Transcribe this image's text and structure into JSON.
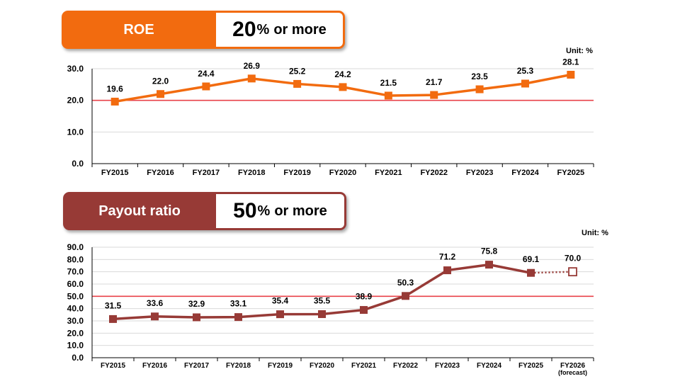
{
  "roe": {
    "label": "ROE",
    "target_value": "20",
    "target_unit": "%",
    "target_rest": "or more",
    "unit_label": "Unit: %",
    "color": "#f26b0f",
    "chart_data": {
      "type": "line",
      "categories": [
        "FY2015",
        "FY2016",
        "FY2017",
        "FY2018",
        "FY2019",
        "FY2020",
        "FY2021",
        "FY2022",
        "FY2023",
        "FY2024",
        "FY2025"
      ],
      "values": [
        19.6,
        22.0,
        24.4,
        26.9,
        25.2,
        24.2,
        21.5,
        21.7,
        23.5,
        25.3,
        28.1
      ],
      "value_labels": [
        "19.6",
        "22.0",
        "24.4",
        "26.9",
        "25.2",
        "24.2",
        "21.5",
        "21.7",
        "23.5",
        "25.3",
        "28.1"
      ],
      "yticks": [
        "0.0",
        "10.0",
        "20.0",
        "30.0"
      ],
      "ylim": [
        0,
        30
      ],
      "target_line": 20,
      "target_color": "#e8424a",
      "grid": true
    }
  },
  "payout": {
    "label": "Payout ratio",
    "target_value": "50",
    "target_unit": "%",
    "target_rest": "or more",
    "unit_label": "Unit: %",
    "color": "#973a36",
    "chart_data": {
      "type": "line",
      "categories": [
        "FY2015",
        "FY2016",
        "FY2017",
        "FY2018",
        "FY2019",
        "FY2020",
        "FY2021",
        "FY2022",
        "FY2023",
        "FY2024",
        "FY2025",
        "FY2026"
      ],
      "category_sublabels": [
        "",
        "",
        "",
        "",
        "",
        "",
        "",
        "",
        "",
        "",
        "",
        "(forecast)"
      ],
      "values": [
        31.5,
        33.6,
        32.9,
        33.1,
        35.4,
        35.5,
        38.9,
        50.3,
        71.2,
        75.8,
        69.1,
        70.0
      ],
      "value_labels": [
        "31.5",
        "33.6",
        "32.9",
        "33.1",
        "35.4",
        "35.5",
        "38.9",
        "50.3",
        "71.2",
        "75.8",
        "69.1",
        "70.0"
      ],
      "forecast_from_index": 11,
      "yticks": [
        "0.0",
        "10.0",
        "20.0",
        "30.0",
        "40.0",
        "50.0",
        "60.0",
        "70.0",
        "80.0",
        "90.0"
      ],
      "ylim": [
        0,
        90
      ],
      "target_line": 50,
      "target_color": "#e8424a",
      "grid": true
    }
  }
}
